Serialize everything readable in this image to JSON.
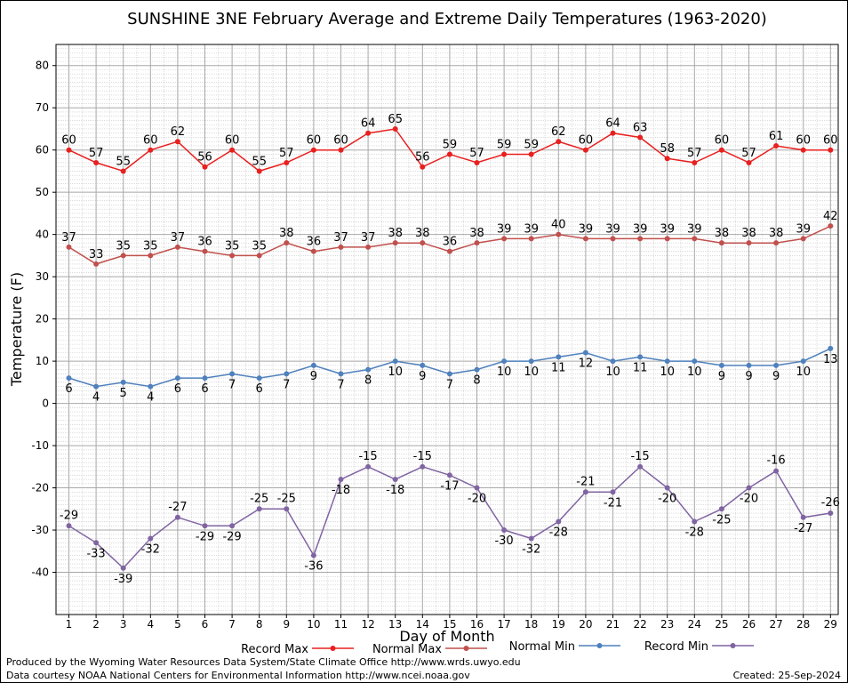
{
  "chart_data": {
    "type": "line",
    "title": "SUNSHINE 3NE February Average and Extreme Daily Temperatures (1963-2020)",
    "xlabel": "Day of Month",
    "ylabel": "Temperature (F)",
    "ylim": [
      -50,
      85
    ],
    "yticks": [
      -40,
      -30,
      -20,
      -10,
      0,
      10,
      20,
      30,
      40,
      50,
      60,
      70,
      80
    ],
    "grid": true,
    "legend_position": "bottom",
    "x": [
      1,
      2,
      3,
      4,
      5,
      6,
      7,
      8,
      9,
      10,
      11,
      12,
      13,
      14,
      15,
      16,
      17,
      18,
      19,
      20,
      21,
      22,
      23,
      24,
      25,
      26,
      27,
      28,
      29
    ],
    "series": [
      {
        "name": "Record Max",
        "color": "#e8201f",
        "values": [
          60,
          57,
          55,
          60,
          62,
          56,
          60,
          55,
          57,
          60,
          60,
          64,
          65,
          56,
          59,
          57,
          59,
          59,
          62,
          60,
          64,
          63,
          58,
          57,
          60,
          57,
          61,
          60,
          60
        ]
      },
      {
        "name": "Normal Max",
        "color": "#c0504d",
        "values": [
          37,
          33,
          35,
          35,
          37,
          36,
          35,
          35,
          38,
          36,
          37,
          37,
          38,
          38,
          36,
          38,
          39,
          39,
          40,
          39,
          39,
          39,
          39,
          39,
          38,
          38,
          38,
          39,
          42
        ]
      },
      {
        "name": "Normal Min",
        "color": "#4f81bd",
        "values": [
          6,
          4,
          5,
          4,
          6,
          6,
          7,
          6,
          7,
          9,
          7,
          8,
          10,
          9,
          7,
          8,
          10,
          10,
          11,
          12,
          10,
          11,
          10,
          10,
          9,
          9,
          9,
          10,
          13
        ]
      },
      {
        "name": "Record Min",
        "color": "#8064a2",
        "values": [
          -29,
          -33,
          -39,
          -32,
          -27,
          -29,
          -29,
          -25,
          -25,
          -36,
          -18,
          -15,
          -18,
          -15,
          -17,
          -20,
          -30,
          -32,
          -28,
          -21,
          -21,
          -15,
          -20,
          -28,
          -25,
          -20,
          -16,
          -27,
          -26
        ]
      }
    ]
  },
  "footer": {
    "produced_by": "Produced by the Wyoming Water Resources Data System/State Climate Office http://www.wrds.uwyo.edu",
    "courtesy": "Data courtesy NOAA National Centers for Environmental Information http://www.ncei.noaa.gov",
    "created": "Created:  25-Sep-2024"
  }
}
